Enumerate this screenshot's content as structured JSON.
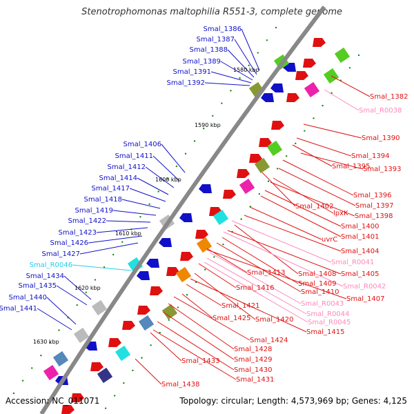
{
  "title": "Stenotrophomonas maltophilia R551-3, complete genome",
  "accession": "Accession: NC_011071",
  "summary": "Topology: circular; Length: 4,573,969 bp; Genes: 4,125",
  "colors": {
    "forward": "#e01010",
    "reverse": "#1010c8",
    "rna": "#ff88bb",
    "rna_reverse": "#22ccee",
    "backbone": "#888888",
    "tick": "#118811"
  },
  "ticks": [
    "1580 kbp",
    "1590 kbp",
    "1600 kbp",
    "1610 kbp",
    "1620 kbp",
    "1630 kbp"
  ],
  "labels_left": [
    {
      "text": "Smal_1386",
      "kind": "reverse"
    },
    {
      "text": "Smal_1387",
      "kind": "reverse"
    },
    {
      "text": "Smal_1388",
      "kind": "reverse"
    },
    {
      "text": "Smal_1389",
      "kind": "reverse"
    },
    {
      "text": "Smal_1391",
      "kind": "reverse"
    },
    {
      "text": "Smal_1392",
      "kind": "reverse"
    },
    {
      "text": "Smal_1406",
      "kind": "reverse"
    },
    {
      "text": "Smal_1411",
      "kind": "reverse"
    },
    {
      "text": "Smal_1412",
      "kind": "reverse"
    },
    {
      "text": "Smal_1414",
      "kind": "reverse"
    },
    {
      "text": "Smal_1417",
      "kind": "reverse"
    },
    {
      "text": "Smal_1418",
      "kind": "reverse"
    },
    {
      "text": "Smal_1419",
      "kind": "reverse"
    },
    {
      "text": "Smal_1422",
      "kind": "reverse"
    },
    {
      "text": "Smal_1423",
      "kind": "reverse"
    },
    {
      "text": "Smal_1426",
      "kind": "reverse"
    },
    {
      "text": "Smal_1427",
      "kind": "reverse"
    },
    {
      "text": "Smal_R0046",
      "kind": "rna_reverse"
    },
    {
      "text": "Smal_1434",
      "kind": "reverse"
    },
    {
      "text": "Smal_1435",
      "kind": "reverse"
    },
    {
      "text": "Smal_1440",
      "kind": "reverse"
    },
    {
      "text": "Smal_1441",
      "kind": "reverse"
    }
  ],
  "labels_right": [
    {
      "text": "Smal_1382",
      "kind": "forward"
    },
    {
      "text": "Smal_R0038",
      "kind": "rna"
    },
    {
      "text": "Smal_1390",
      "kind": "forward"
    },
    {
      "text": "Smal_1394",
      "kind": "forward"
    },
    {
      "text": "Smal_1395",
      "kind": "forward"
    },
    {
      "text": "Smal_1393",
      "kind": "forward"
    },
    {
      "text": "Smal_1396",
      "kind": "forward"
    },
    {
      "text": "Smal_1397",
      "kind": "forward"
    },
    {
      "text": "Smal_1402",
      "kind": "forward"
    },
    {
      "text": "lpxK",
      "kind": "forward"
    },
    {
      "text": "Smal_1398",
      "kind": "forward"
    },
    {
      "text": "Smal_1400",
      "kind": "forward"
    },
    {
      "text": "Smal_1401",
      "kind": "forward"
    },
    {
      "text": "uvrC",
      "kind": "forward"
    },
    {
      "text": "Smal_1404",
      "kind": "forward"
    },
    {
      "text": "Smal_R0041",
      "kind": "rna"
    },
    {
      "text": "Smal_1413",
      "kind": "forward"
    },
    {
      "text": "Smal_1408",
      "kind": "forward"
    },
    {
      "text": "Smal_1405",
      "kind": "forward"
    },
    {
      "text": "Smal_1416",
      "kind": "forward"
    },
    {
      "text": "Smal_1409",
      "kind": "forward"
    },
    {
      "text": "Smal_R0042",
      "kind": "rna"
    },
    {
      "text": "Smal_1410",
      "kind": "forward"
    },
    {
      "text": "Smal_1407",
      "kind": "forward"
    },
    {
      "text": "Smal_R0043",
      "kind": "rna"
    },
    {
      "text": "Smal_1421",
      "kind": "forward"
    },
    {
      "text": "Smal_R0044",
      "kind": "rna"
    },
    {
      "text": "Smal_1425",
      "kind": "forward"
    },
    {
      "text": "Smal_1420",
      "kind": "forward"
    },
    {
      "text": "Smal_R0045",
      "kind": "rna"
    },
    {
      "text": "Smal_1415",
      "kind": "forward"
    },
    {
      "text": "Smal_1424",
      "kind": "forward"
    },
    {
      "text": "Smal_1428",
      "kind": "forward"
    },
    {
      "text": "Smal_1429",
      "kind": "forward"
    },
    {
      "text": "Smal_1433",
      "kind": "forward"
    },
    {
      "text": "Smal_1430",
      "kind": "forward"
    },
    {
      "text": "Smal_1431",
      "kind": "forward"
    },
    {
      "text": "Smal_1438",
      "kind": "forward"
    }
  ]
}
